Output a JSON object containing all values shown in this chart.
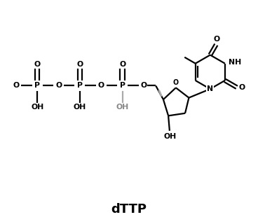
{
  "title": "dTTP",
  "bg": "#ffffff",
  "lc": "#000000",
  "gc": "#aaaaaa",
  "lw": 1.6,
  "fs": 7.8,
  "fs_title": 13,
  "figsize": [
    3.78,
    3.2
  ],
  "dpi": 100,
  "xlim": [
    -0.3,
    10.2
  ],
  "ylim": [
    -1.5,
    7.0
  ]
}
